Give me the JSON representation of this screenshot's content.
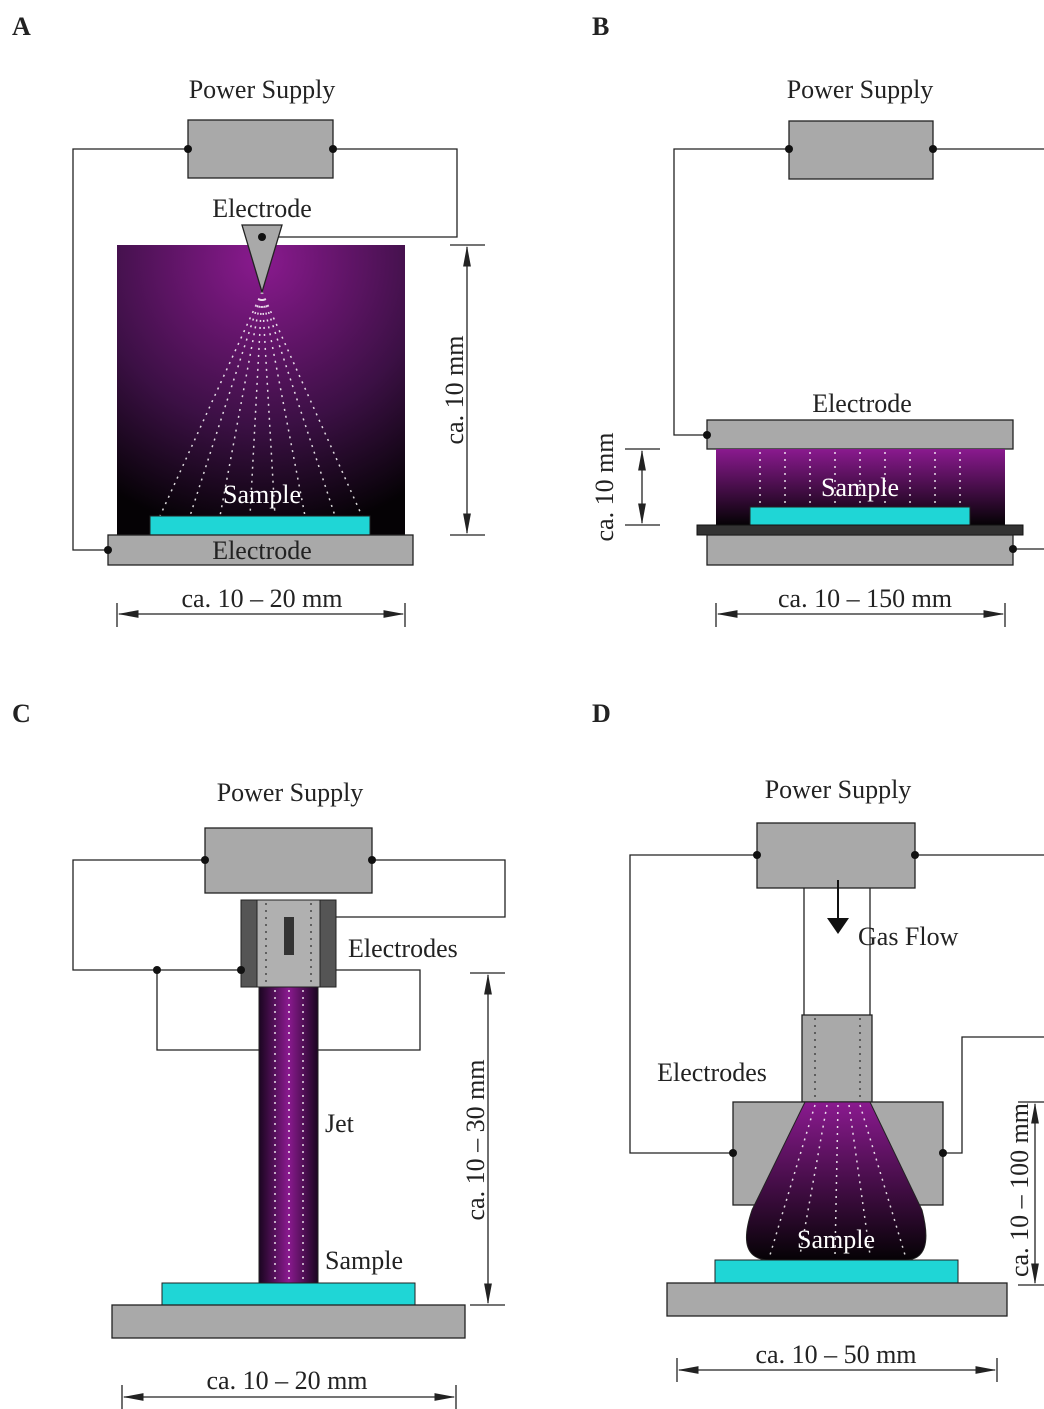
{
  "panels": [
    {
      "label": "A",
      "power_supply": "Power Supply",
      "electrode_top": "Electrode",
      "sample": "Sample",
      "electrode_bottom": "Electrode",
      "height": "ca. 10 mm",
      "width": "ca. 10 – 20 mm"
    },
    {
      "label": "B",
      "power_supply": "Power Supply",
      "electrode": "Electrode",
      "sample": "Sample",
      "height": "ca. 10 mm",
      "width": "ca. 10 – 150 mm"
    },
    {
      "label": "C",
      "power_supply": "Power Supply",
      "electrodes": "Electrodes",
      "jet": "Jet",
      "sample": "Sample",
      "height": "ca. 10 – 30 mm",
      "width": "ca. 10 – 20 mm"
    },
    {
      "label": "D",
      "power_supply": "Power Supply",
      "gas_flow": "Gas Flow",
      "electrodes": "Electrodes",
      "sample": "Sample",
      "height": "ca. 10 – 100 mm",
      "width": "ca. 10 – 50 mm"
    }
  ]
}
